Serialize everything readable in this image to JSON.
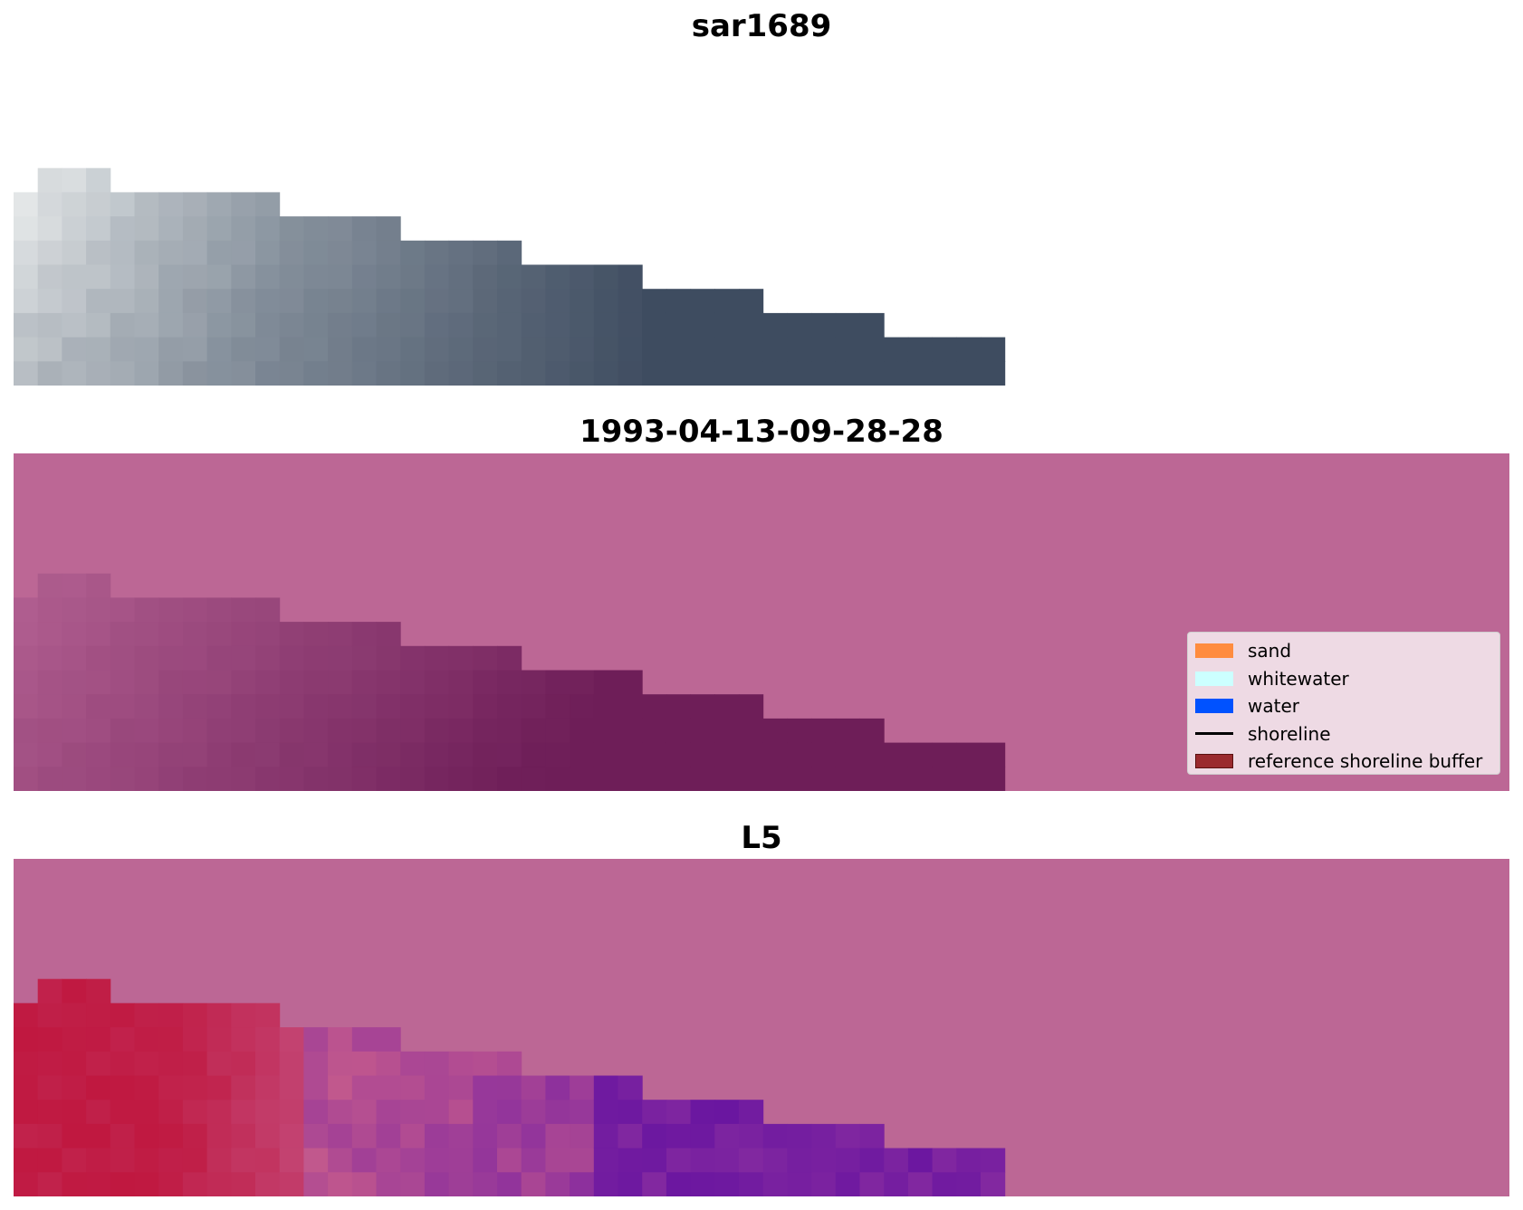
{
  "panels": {
    "top_title": "sar1689",
    "middle_title": "1993-04-13-09-28-28",
    "bottom_title": "L5"
  },
  "colors": {
    "background_mask": "#bc6795",
    "sand": "#ff8c3f",
    "whitewater": "#ccffff",
    "water": "#0052ff",
    "shoreline": "#000000",
    "reference_shoreline_buffer": "#9a2a2e"
  },
  "legend": {
    "items": [
      {
        "label": "sand",
        "kind": "patch",
        "color": "#ff8c3f",
        "icon": "sand-swatch-icon"
      },
      {
        "label": "whitewater",
        "kind": "patch",
        "color": "#ccffff",
        "icon": "whitewater-swatch-icon"
      },
      {
        "label": "water",
        "kind": "patch",
        "color": "#0052ff",
        "icon": "water-swatch-icon"
      },
      {
        "label": "shoreline",
        "kind": "line",
        "color": "#000000",
        "icon": "shoreline-line-icon"
      },
      {
        "label": "reference shoreline buffer",
        "kind": "patch",
        "color": "#9a2a2e",
        "icon": "buffer-swatch-icon"
      }
    ]
  }
}
